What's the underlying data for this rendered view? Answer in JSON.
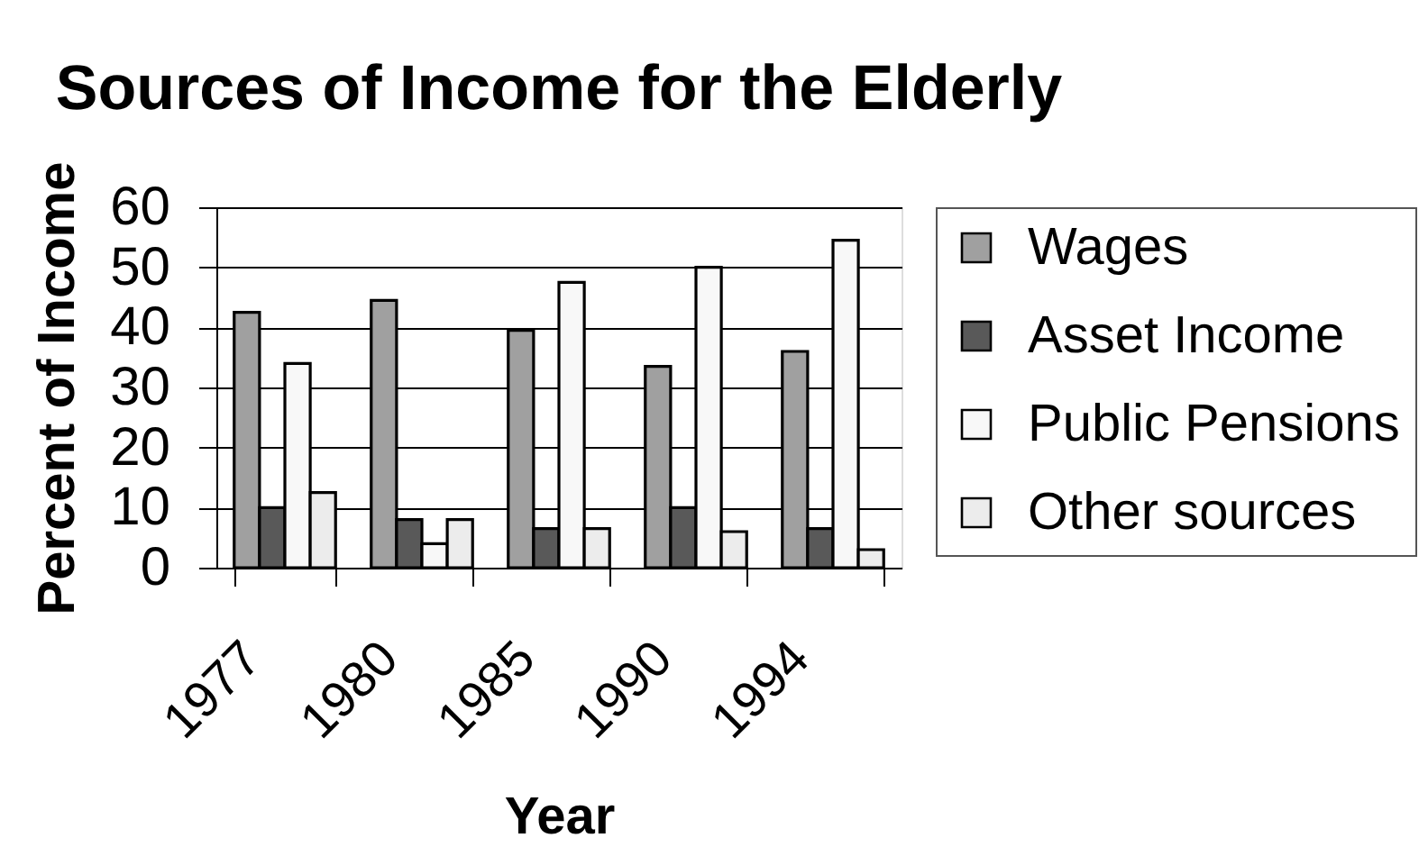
{
  "chart_data": {
    "type": "bar",
    "title": "Sources of Income for the Elderly",
    "xlabel": "Year",
    "ylabel": "Percent of Income",
    "categories": [
      "1977",
      "1980",
      "1985",
      "1990",
      "1994"
    ],
    "series": [
      {
        "name": "Wages",
        "color": "#a0a0a0",
        "values": [
          42.5,
          44.5,
          39.5,
          33.5,
          36
        ]
      },
      {
        "name": "Asset Income",
        "color": "#595959",
        "values": [
          10,
          8,
          6.5,
          10,
          6.5
        ]
      },
      {
        "name": "Public Pensions",
        "color": "#f8f8f8",
        "values": [
          34,
          4,
          47.5,
          50,
          54.5
        ]
      },
      {
        "name": "Other sources",
        "color": "#ececec",
        "values": [
          12.5,
          8,
          6.5,
          6,
          3
        ]
      }
    ],
    "ylim": [
      0,
      60
    ],
    "yticks": [
      0,
      10,
      20,
      30,
      40,
      50,
      60
    ],
    "grid": "y",
    "legend": "right"
  }
}
